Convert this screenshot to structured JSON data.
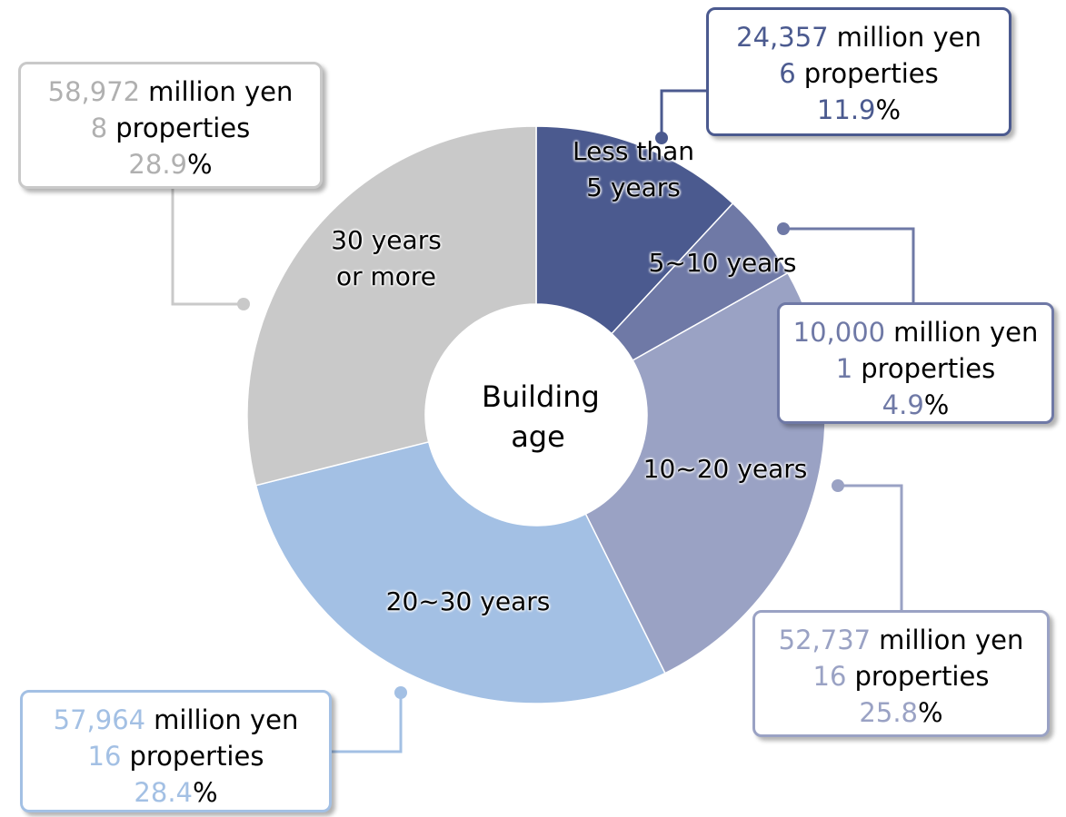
{
  "chart_data": {
    "type": "pie",
    "center_label": "Building age",
    "categories": [
      "Less than 5 years",
      "5~10 years",
      "10~20 years",
      "20~30 years",
      "30 years or more"
    ],
    "values": [
      11.9,
      4.9,
      25.8,
      28.4,
      28.9
    ],
    "colors": [
      "#4b5a8f",
      "#6f79a6",
      "#9aa2c4",
      "#a3c0e4",
      "#c9c9c9"
    ],
    "amounts": [
      24357,
      10000,
      52737,
      57964,
      58972
    ],
    "amount_labels": [
      "24,357",
      "10,000",
      "52,737",
      "57,964",
      "58,972"
    ],
    "amount_unit": "million yen",
    "properties": [
      6,
      1,
      16,
      16,
      8
    ],
    "properties_unit": "properties",
    "percent_unit": "%"
  }
}
